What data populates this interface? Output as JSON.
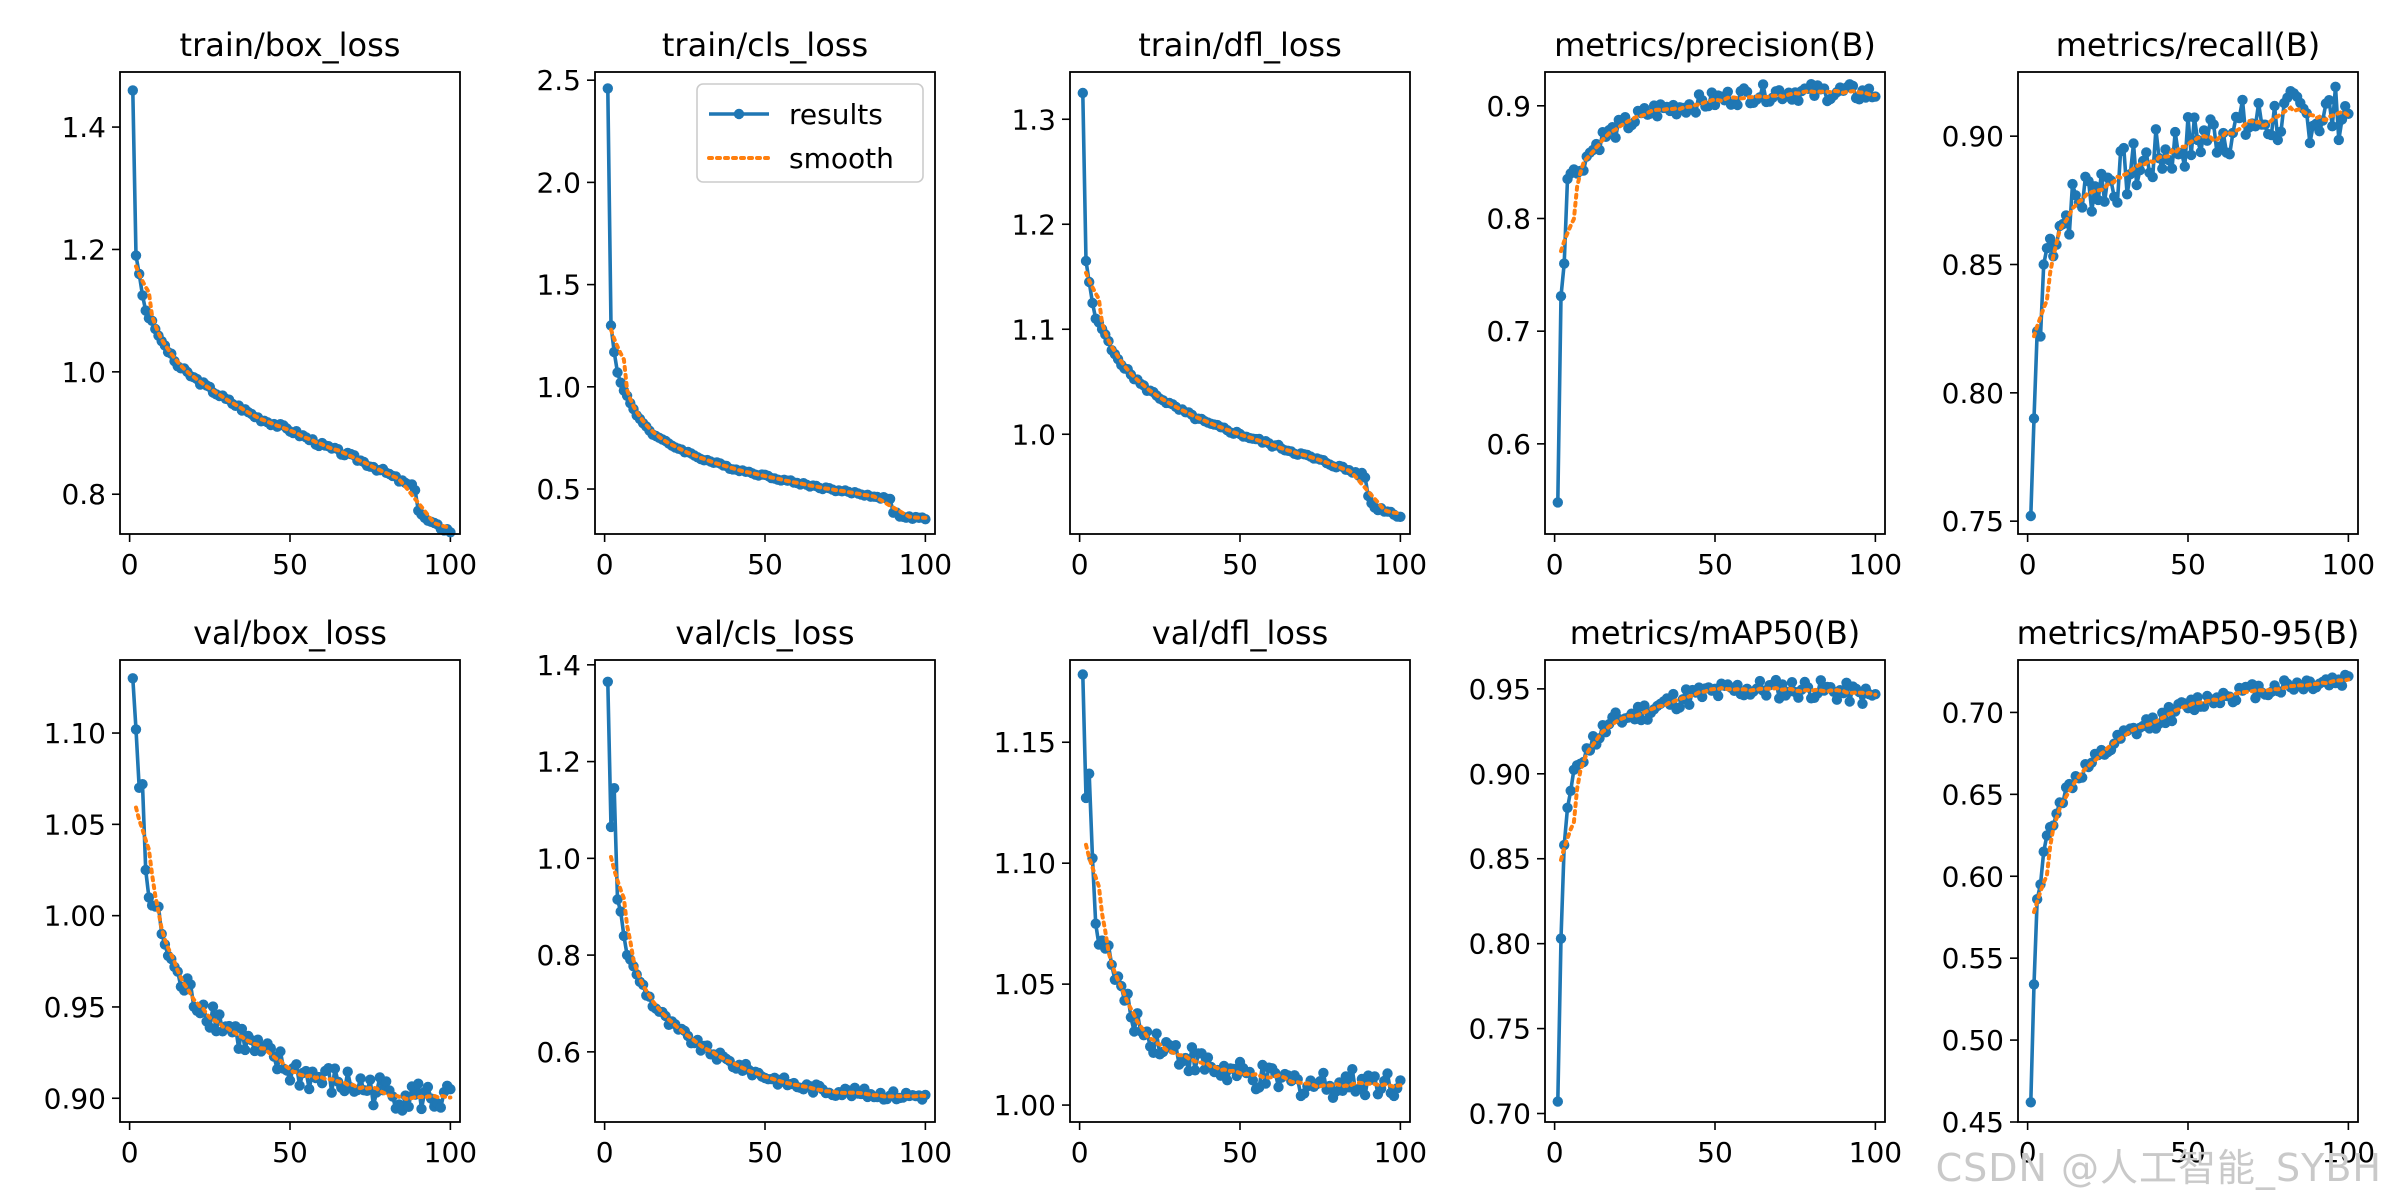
{
  "figure": {
    "watermark": "CSDN @人工智能_SYBH",
    "colors": {
      "results": "#1f77b4",
      "smooth": "#ff7f0e",
      "axis": "#000000"
    },
    "legend": {
      "placement": "upper-right",
      "panel": 1,
      "results_label": "results",
      "smooth_label": "smooth"
    }
  },
  "chart_data": [
    {
      "type": "line",
      "title": "train/box_loss",
      "xlim": [
        -3,
        103
      ],
      "ylim": [
        0.735,
        1.49
      ],
      "xticks": [
        0,
        50,
        100
      ],
      "yticks": [
        0.8,
        1.0,
        1.2,
        1.4
      ],
      "ytick_labels": [
        "0.8",
        "1.0",
        "1.2",
        "1.4"
      ],
      "anchors": [
        [
          1,
          1.46
        ],
        [
          2,
          1.19
        ],
        [
          3,
          1.16
        ],
        [
          4,
          1.125
        ],
        [
          5,
          1.1
        ],
        [
          8,
          1.07
        ],
        [
          10,
          1.05
        ],
        [
          15,
          1.01
        ],
        [
          20,
          0.99
        ],
        [
          30,
          0.955
        ],
        [
          40,
          0.925
        ],
        [
          50,
          0.905
        ],
        [
          60,
          0.88
        ],
        [
          70,
          0.86
        ],
        [
          80,
          0.835
        ],
        [
          85,
          0.82
        ],
        [
          89,
          0.81
        ],
        [
          90,
          0.775
        ],
        [
          92,
          0.76
        ],
        [
          95,
          0.75
        ],
        [
          100,
          0.74
        ]
      ],
      "noise": 0.004
    },
    {
      "type": "line",
      "title": "train/cls_loss",
      "xlim": [
        -3,
        103
      ],
      "ylim": [
        0.28,
        2.54
      ],
      "xticks": [
        0,
        50,
        100
      ],
      "yticks": [
        0.5,
        1.0,
        1.5,
        2.0,
        2.5
      ],
      "ytick_labels": [
        "0.5",
        "1.0",
        "1.5",
        "2.0",
        "2.5"
      ],
      "anchors": [
        [
          1,
          2.46
        ],
        [
          2,
          1.3
        ],
        [
          3,
          1.17
        ],
        [
          4,
          1.07
        ],
        [
          5,
          1.02
        ],
        [
          8,
          0.92
        ],
        [
          10,
          0.86
        ],
        [
          15,
          0.77
        ],
        [
          20,
          0.72
        ],
        [
          30,
          0.65
        ],
        [
          40,
          0.6
        ],
        [
          50,
          0.565
        ],
        [
          60,
          0.53
        ],
        [
          70,
          0.5
        ],
        [
          80,
          0.475
        ],
        [
          89,
          0.45
        ],
        [
          90,
          0.39
        ],
        [
          92,
          0.37
        ],
        [
          95,
          0.36
        ],
        [
          100,
          0.355
        ]
      ],
      "noise": 0.006
    },
    {
      "type": "line",
      "title": "train/dfl_loss",
      "xlim": [
        -3,
        103
      ],
      "ylim": [
        0.905,
        1.345
      ],
      "xticks": [
        0,
        50,
        100
      ],
      "yticks": [
        1.0,
        1.1,
        1.2,
        1.3
      ],
      "ytick_labels": [
        "1.0",
        "1.1",
        "1.2",
        "1.3"
      ],
      "anchors": [
        [
          1,
          1.325
        ],
        [
          2,
          1.165
        ],
        [
          3,
          1.145
        ],
        [
          4,
          1.125
        ],
        [
          5,
          1.11
        ],
        [
          8,
          1.095
        ],
        [
          10,
          1.08
        ],
        [
          15,
          1.06
        ],
        [
          20,
          1.045
        ],
        [
          30,
          1.025
        ],
        [
          40,
          1.01
        ],
        [
          50,
          1.0
        ],
        [
          60,
          0.99
        ],
        [
          70,
          0.98
        ],
        [
          80,
          0.97
        ],
        [
          89,
          0.96
        ],
        [
          90,
          0.94
        ],
        [
          92,
          0.93
        ],
        [
          95,
          0.928
        ],
        [
          100,
          0.922
        ]
      ],
      "noise": 0.002
    },
    {
      "type": "line",
      "title": "metrics/precision(B)",
      "xlim": [
        -3,
        103
      ],
      "ylim": [
        0.52,
        0.93
      ],
      "xticks": [
        0,
        50,
        100
      ],
      "yticks": [
        0.6,
        0.7,
        0.8,
        0.9
      ],
      "ytick_labels": [
        "0.6",
        "0.7",
        "0.8",
        "0.9"
      ],
      "anchors": [
        [
          1,
          0.548
        ],
        [
          2,
          0.731
        ],
        [
          3,
          0.76
        ],
        [
          4,
          0.835
        ],
        [
          5,
          0.84
        ],
        [
          7,
          0.84
        ],
        [
          10,
          0.855
        ],
        [
          15,
          0.872
        ],
        [
          20,
          0.88
        ],
        [
          30,
          0.895
        ],
        [
          40,
          0.9
        ],
        [
          50,
          0.905
        ],
        [
          60,
          0.91
        ],
        [
          70,
          0.912
        ],
        [
          80,
          0.912
        ],
        [
          90,
          0.912
        ],
        [
          100,
          0.91
        ]
      ],
      "noise": 0.008
    },
    {
      "type": "line",
      "title": "metrics/recall(B)",
      "xlim": [
        -3,
        103
      ],
      "ylim": [
        0.745,
        0.925
      ],
      "xticks": [
        0,
        50,
        100
      ],
      "yticks": [
        0.75,
        0.8,
        0.85,
        0.9
      ],
      "ytick_labels": [
        "0.75",
        "0.80",
        "0.85",
        "0.90"
      ],
      "anchors": [
        [
          1,
          0.752
        ],
        [
          2,
          0.79
        ],
        [
          3,
          0.824
        ],
        [
          4,
          0.822
        ],
        [
          5,
          0.85
        ],
        [
          7,
          0.86
        ],
        [
          10,
          0.865
        ],
        [
          15,
          0.875
        ],
        [
          20,
          0.88
        ],
        [
          30,
          0.885
        ],
        [
          40,
          0.892
        ],
        [
          50,
          0.898
        ],
        [
          60,
          0.902
        ],
        [
          70,
          0.905
        ],
        [
          80,
          0.907
        ],
        [
          90,
          0.908
        ],
        [
          100,
          0.91
        ]
      ],
      "noise": 0.011
    },
    {
      "type": "line",
      "title": "val/box_loss",
      "xlim": [
        -3,
        103
      ],
      "ylim": [
        0.887,
        1.14
      ],
      "xticks": [
        0,
        50,
        100
      ],
      "yticks": [
        0.9,
        0.95,
        1.0,
        1.05,
        1.1
      ],
      "ytick_labels": [
        "0.90",
        "0.95",
        "1.00",
        "1.05",
        "1.10"
      ],
      "anchors": [
        [
          1,
          1.13
        ],
        [
          2,
          1.102
        ],
        [
          3,
          1.07
        ],
        [
          4,
          1.072
        ],
        [
          5,
          1.025
        ],
        [
          6,
          1.01
        ],
        [
          8,
          1.005
        ],
        [
          10,
          0.99
        ],
        [
          15,
          0.965
        ],
        [
          20,
          0.955
        ],
        [
          30,
          0.94
        ],
        [
          40,
          0.925
        ],
        [
          50,
          0.915
        ],
        [
          60,
          0.91
        ],
        [
          70,
          0.907
        ],
        [
          80,
          0.903
        ],
        [
          90,
          0.901
        ],
        [
          100,
          0.899
        ]
      ],
      "noise": 0.009
    },
    {
      "type": "line",
      "title": "val/cls_loss",
      "xlim": [
        -3,
        103
      ],
      "ylim": [
        0.455,
        1.41
      ],
      "xticks": [
        0,
        50,
        100
      ],
      "yticks": [
        0.6,
        0.8,
        1.0,
        1.2,
        1.4
      ],
      "ytick_labels": [
        "0.6",
        "0.8",
        "1.0",
        "1.2",
        "1.4"
      ],
      "anchors": [
        [
          1,
          1.365
        ],
        [
          2,
          1.065
        ],
        [
          3,
          1.145
        ],
        [
          4,
          0.915
        ],
        [
          5,
          0.89
        ],
        [
          7,
          0.8
        ],
        [
          10,
          0.76
        ],
        [
          15,
          0.7
        ],
        [
          20,
          0.66
        ],
        [
          30,
          0.61
        ],
        [
          40,
          0.575
        ],
        [
          50,
          0.55
        ],
        [
          60,
          0.53
        ],
        [
          70,
          0.52
        ],
        [
          80,
          0.515
        ],
        [
          90,
          0.51
        ],
        [
          100,
          0.51
        ]
      ],
      "noise": 0.01
    },
    {
      "type": "line",
      "title": "val/dfl_loss",
      "xlim": [
        -3,
        103
      ],
      "ylim": [
        0.993,
        1.184
      ],
      "xticks": [
        0,
        50,
        100
      ],
      "yticks": [
        1.0,
        1.05,
        1.1,
        1.15
      ],
      "ytick_labels": [
        "1.00",
        "1.05",
        "1.10",
        "1.15"
      ],
      "anchors": [
        [
          1,
          1.178
        ],
        [
          2,
          1.127
        ],
        [
          3,
          1.137
        ],
        [
          4,
          1.102
        ],
        [
          5,
          1.075
        ],
        [
          7,
          1.068
        ],
        [
          10,
          1.058
        ],
        [
          15,
          1.04
        ],
        [
          20,
          1.03
        ],
        [
          30,
          1.022
        ],
        [
          40,
          1.016
        ],
        [
          50,
          1.012
        ],
        [
          60,
          1.01
        ],
        [
          70,
          1.009
        ],
        [
          80,
          1.009
        ],
        [
          90,
          1.01
        ],
        [
          100,
          1.009
        ]
      ],
      "noise": 0.006
    },
    {
      "type": "line",
      "title": "metrics/mAP50(B)",
      "xlim": [
        -3,
        103
      ],
      "ylim": [
        0.695,
        0.967
      ],
      "xticks": [
        0,
        50,
        100
      ],
      "yticks": [
        0.7,
        0.75,
        0.8,
        0.85,
        0.9,
        0.95
      ],
      "ytick_labels": [
        "0.70",
        "0.75",
        "0.80",
        "0.85",
        "0.90",
        "0.95"
      ],
      "anchors": [
        [
          1,
          0.707
        ],
        [
          2,
          0.803
        ],
        [
          3,
          0.858
        ],
        [
          4,
          0.88
        ],
        [
          5,
          0.89
        ],
        [
          7,
          0.905
        ],
        [
          10,
          0.915
        ],
        [
          15,
          0.925
        ],
        [
          20,
          0.932
        ],
        [
          30,
          0.938
        ],
        [
          40,
          0.945
        ],
        [
          50,
          0.948
        ],
        [
          60,
          0.95
        ],
        [
          70,
          0.95
        ],
        [
          80,
          0.95
        ],
        [
          90,
          0.948
        ],
        [
          100,
          0.945
        ]
      ],
      "noise": 0.006
    },
    {
      "type": "line",
      "title": "metrics/mAP50-95(B)",
      "xlim": [
        -3,
        103
      ],
      "ylim": [
        0.45,
        0.732
      ],
      "xticks": [
        0,
        50,
        100
      ],
      "yticks": [
        0.45,
        0.5,
        0.55,
        0.6,
        0.65,
        0.7
      ],
      "ytick_labels": [
        "0.45",
        "0.50",
        "0.55",
        "0.60",
        "0.65",
        "0.70"
      ],
      "anchors": [
        [
          1,
          0.462
        ],
        [
          2,
          0.534
        ],
        [
          3,
          0.586
        ],
        [
          4,
          0.595
        ],
        [
          5,
          0.615
        ],
        [
          7,
          0.63
        ],
        [
          10,
          0.645
        ],
        [
          15,
          0.66
        ],
        [
          20,
          0.668
        ],
        [
          30,
          0.685
        ],
        [
          40,
          0.695
        ],
        [
          50,
          0.704
        ],
        [
          60,
          0.71
        ],
        [
          70,
          0.713
        ],
        [
          80,
          0.716
        ],
        [
          90,
          0.718
        ],
        [
          100,
          0.72
        ]
      ],
      "noise": 0.005
    }
  ]
}
